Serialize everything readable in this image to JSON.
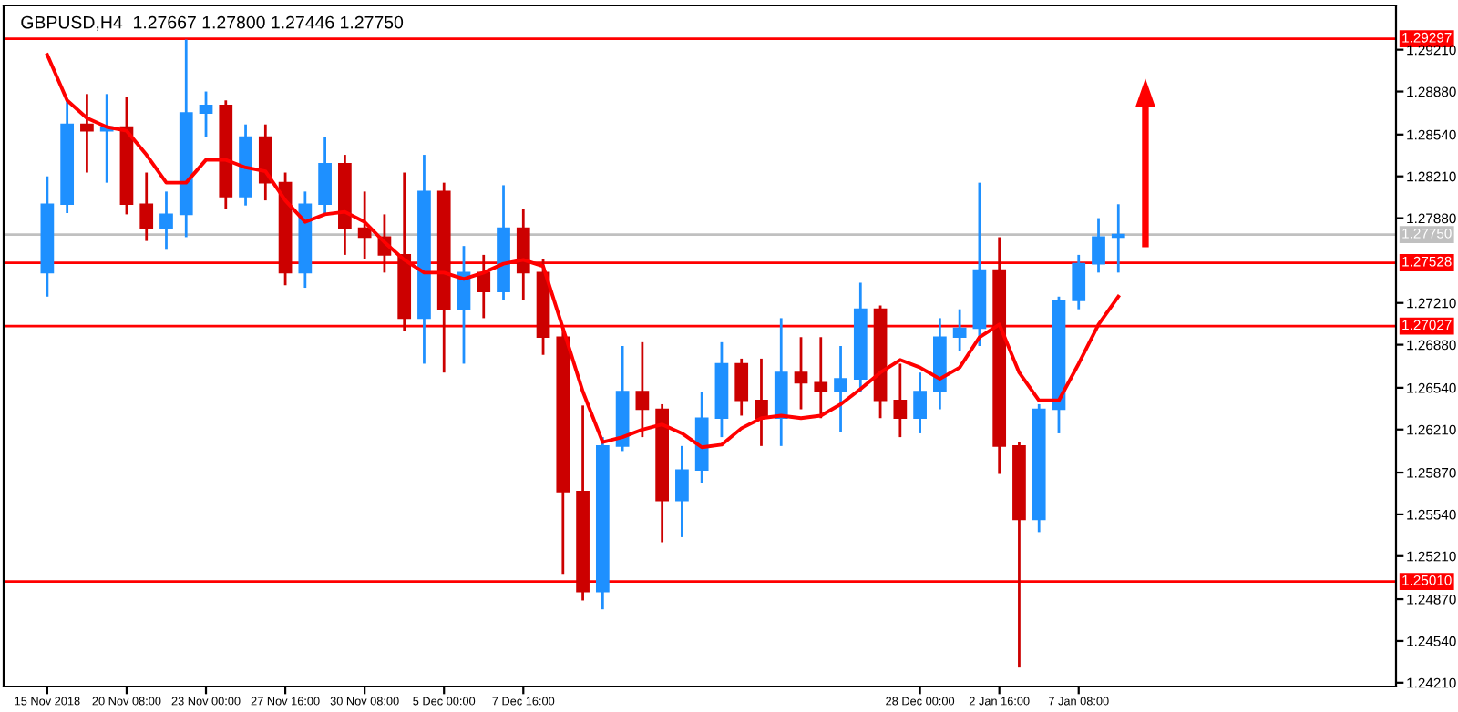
{
  "chart_data": {
    "type": "candlestick",
    "title": "GBPUSD,H4  1.27667 1.27800 1.27446 1.27750",
    "categories": [
      "15 Nov 2018",
      null,
      null,
      null,
      "20 Nov 08:00",
      null,
      null,
      null,
      "23 Nov 00:00",
      null,
      null,
      null,
      "27 Nov 16:00",
      null,
      null,
      null,
      "30 Nov 08:00",
      null,
      null,
      null,
      "5 Dec 00:00",
      null,
      null,
      null,
      "7 Dec 16:00",
      null,
      null,
      null,
      null,
      null,
      null,
      null,
      null,
      null,
      null,
      null,
      null,
      null,
      null,
      null,
      null,
      null,
      null,
      null,
      "28 Dec 00:00",
      null,
      null,
      null,
      "2 Jan 16:00",
      null,
      null,
      null,
      "7 Jan 08:00",
      null,
      null
    ],
    "ohlc": [
      [
        1.2745,
        1.2821,
        1.2726,
        1.2799
      ],
      [
        1.2799,
        1.2881,
        1.2792,
        1.2862
      ],
      [
        1.2862,
        1.2886,
        1.2824,
        1.2857
      ],
      [
        1.2857,
        1.2886,
        1.2816,
        1.286
      ],
      [
        1.286,
        1.2884,
        1.2791,
        1.2799
      ],
      [
        1.2799,
        1.2824,
        1.277,
        1.278
      ],
      [
        1.278,
        1.2809,
        1.2763,
        1.2791
      ],
      [
        1.2791,
        1.2929,
        1.2773,
        1.2871
      ],
      [
        1.2871,
        1.2888,
        1.2852,
        1.2877
      ],
      [
        1.2877,
        1.2881,
        1.2795,
        1.2805
      ],
      [
        1.2805,
        1.2862,
        1.2798,
        1.2852
      ],
      [
        1.2852,
        1.2862,
        1.2802,
        1.2816
      ],
      [
        1.2816,
        1.2824,
        1.2735,
        1.2745
      ],
      [
        1.2745,
        1.2809,
        1.2733,
        1.2799
      ],
      [
        1.2799,
        1.2852,
        1.2791,
        1.2831
      ],
      [
        1.2831,
        1.2838,
        1.2759,
        1.278
      ],
      [
        1.278,
        1.2809,
        1.2756,
        1.2773
      ],
      [
        1.2773,
        1.2791,
        1.2745,
        1.2759
      ],
      [
        1.2759,
        1.2824,
        1.2699,
        1.2709
      ],
      [
        1.2709,
        1.2838,
        1.2673,
        1.2809
      ],
      [
        1.2809,
        1.2816,
        1.2666,
        1.2716
      ],
      [
        1.2716,
        1.2766,
        1.2673,
        1.2745
      ],
      [
        1.2745,
        1.2759,
        1.2709,
        1.273
      ],
      [
        1.273,
        1.2814,
        1.2723,
        1.278
      ],
      [
        1.278,
        1.2795,
        1.2723,
        1.2745
      ],
      [
        1.2745,
        1.2756,
        1.268,
        1.2694
      ],
      [
        1.2694,
        1.2701,
        1.2507,
        1.2572
      ],
      [
        1.2572,
        1.264,
        1.2486,
        1.2493
      ],
      [
        1.2493,
        1.2615,
        1.2479,
        1.2608
      ],
      [
        1.2608,
        1.2687,
        1.2604,
        1.2651
      ],
      [
        1.2651,
        1.269,
        1.2615,
        1.2637
      ],
      [
        1.2637,
        1.2641,
        1.2532,
        1.2565
      ],
      [
        1.2565,
        1.2608,
        1.2536,
        1.2589
      ],
      [
        1.2589,
        1.2651,
        1.2579,
        1.263
      ],
      [
        1.263,
        1.269,
        1.2615,
        1.2673
      ],
      [
        1.2673,
        1.2677,
        1.2632,
        1.2644
      ],
      [
        1.2644,
        1.2677,
        1.2608,
        1.263
      ],
      [
        1.263,
        1.2709,
        1.2608,
        1.2666
      ],
      [
        1.2666,
        1.2694,
        1.2637,
        1.2658
      ],
      [
        1.2658,
        1.2694,
        1.263,
        1.2651
      ],
      [
        1.2651,
        1.2687,
        1.2619,
        1.2661
      ],
      [
        1.2661,
        1.2737,
        1.2651,
        1.2716
      ],
      [
        1.2716,
        1.2719,
        1.263,
        1.2644
      ],
      [
        1.2644,
        1.2673,
        1.2615,
        1.263
      ],
      [
        1.263,
        1.2666,
        1.2618,
        1.2651
      ],
      [
        1.2651,
        1.2709,
        1.2637,
        1.2694
      ],
      [
        1.2694,
        1.2716,
        1.2683,
        1.2701
      ],
      [
        1.2701,
        1.2816,
        1.2687,
        1.2747
      ],
      [
        1.2747,
        1.2773,
        1.2586,
        1.2608
      ],
      [
        1.2608,
        1.2611,
        1.2433,
        1.255
      ],
      [
        1.255,
        1.2641,
        1.254,
        1.2637
      ],
      [
        1.2637,
        1.2726,
        1.2618,
        1.2723
      ],
      [
        1.2723,
        1.2759,
        1.2716,
        1.2752
      ],
      [
        1.2752,
        1.2788,
        1.2745,
        1.2773
      ],
      [
        1.2773,
        1.2799,
        1.2745,
        1.2775
      ]
    ],
    "colors": [
      "#1e90ff",
      "#1e90ff",
      "#cc0000",
      "#1e90ff",
      "#cc0000",
      "#cc0000",
      "#1e90ff",
      "#1e90ff",
      "#1e90ff",
      "#cc0000",
      "#1e90ff",
      "#cc0000",
      "#cc0000",
      "#1e90ff",
      "#1e90ff",
      "#cc0000",
      "#cc0000",
      "#cc0000",
      "#cc0000",
      "#1e90ff",
      "#cc0000",
      "#1e90ff",
      "#cc0000",
      "#1e90ff",
      "#cc0000",
      "#cc0000",
      "#cc0000",
      "#cc0000",
      "#1e90ff",
      "#1e90ff",
      "#cc0000",
      "#cc0000",
      "#1e90ff",
      "#1e90ff",
      "#1e90ff",
      "#cc0000",
      "#cc0000",
      "#1e90ff",
      "#cc0000",
      "#cc0000",
      "#1e90ff",
      "#1e90ff",
      "#cc0000",
      "#cc0000",
      "#1e90ff",
      "#1e90ff",
      "#1e90ff",
      "#1e90ff",
      "#cc0000",
      "#cc0000",
      "#1e90ff",
      "#1e90ff",
      "#1e90ff",
      "#1e90ff",
      "#1e90ff"
    ],
    "series": [
      {
        "type": "line",
        "color": "#ff0000",
        "values": [
          1.2917,
          1.2881,
          1.2867,
          1.286,
          1.2857,
          1.2838,
          1.2816,
          1.2816,
          1.2834,
          1.2834,
          1.2828,
          1.2825,
          1.2802,
          1.2785,
          1.2791,
          1.2793,
          1.2785,
          1.2769,
          1.2755,
          1.2745,
          1.2745,
          1.274,
          1.2745,
          1.2752,
          1.2755,
          1.275,
          1.2701,
          1.2651,
          1.2611,
          1.2615,
          1.2621,
          1.2625,
          1.2618,
          1.2607,
          1.2609,
          1.2622,
          1.263,
          1.2632,
          1.263,
          1.2632,
          1.2641,
          1.2653,
          1.2666,
          1.2676,
          1.267,
          1.2661,
          1.267,
          1.2694,
          1.2704,
          1.2666,
          1.2644,
          1.2644,
          1.2673,
          1.2704,
          1.2726
        ]
      }
    ],
    "ylim": [
      1.2418,
      1.2956
    ],
    "yticks": [
      {
        "value": 1.2421,
        "label": "1.24210"
      },
      {
        "value": 1.2454,
        "label": "1.24540"
      },
      {
        "value": 1.2487,
        "label": "1.24870"
      },
      {
        "value": 1.2521,
        "label": "1.25210"
      },
      {
        "value": 1.2554,
        "label": "1.25540"
      },
      {
        "value": 1.2587,
        "label": "1.25870"
      },
      {
        "value": 1.2621,
        "label": "1.26210"
      },
      {
        "value": 1.2654,
        "label": "1.26540"
      },
      {
        "value": 1.2688,
        "label": "1.26880"
      },
      {
        "value": 1.2721,
        "label": "1.27210"
      },
      {
        "value": 1.2788,
        "label": "1.27880"
      },
      {
        "value": 1.2821,
        "label": "1.28210"
      },
      {
        "value": 1.2854,
        "label": "1.28540"
      },
      {
        "value": 1.2888,
        "label": "1.28880"
      },
      {
        "value": 1.2921,
        "label": "1.29210"
      }
    ],
    "ref_lines": [
      {
        "axis": "y",
        "value": 1.29297,
        "label": "1.29297",
        "color": "#ff0000"
      },
      {
        "axis": "y",
        "value": 1.2775,
        "label": "1.27750",
        "color": "#c0c0c0"
      },
      {
        "axis": "y",
        "value": 1.27528,
        "label": "1.27528",
        "color": "#ff0000"
      },
      {
        "axis": "y",
        "value": 1.27027,
        "label": "1.27027",
        "color": "#ff0000"
      },
      {
        "axis": "y",
        "value": 1.2501,
        "label": "1.25010",
        "color": "#ff0000"
      }
    ],
    "grid": false,
    "legend": false
  }
}
